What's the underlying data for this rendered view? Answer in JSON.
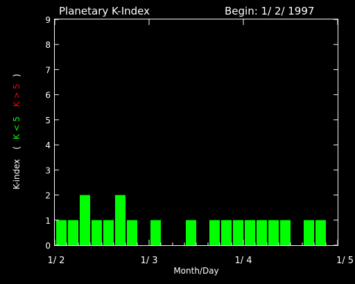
{
  "header": {
    "title": "Planetary K-Index",
    "begin": "Begin: 1/ 2/ 1997"
  },
  "chart_data": {
    "type": "bar",
    "title": "Planetary K-Index",
    "xlabel": "Month/Day",
    "ylabel": {
      "main": "K-index",
      "paren_open": "(",
      "green_part": "K < 5",
      "red_part": "K > 5",
      "paren_close": ")"
    },
    "ylim": [
      0,
      9
    ],
    "yticks": [
      "0",
      "1",
      "2",
      "3",
      "4",
      "5",
      "6",
      "7",
      "8",
      "9"
    ],
    "xlim_days": [
      0,
      3
    ],
    "xtick_labels": [
      "1/ 2",
      "1/ 3",
      "1/ 4",
      "1/ 5"
    ],
    "interval_hours": 3,
    "values": [
      1,
      1,
      2,
      1,
      1,
      2,
      1,
      0,
      1,
      0,
      0,
      1,
      0,
      1,
      1,
      1,
      1,
      1,
      1,
      1,
      0,
      1,
      1,
      0
    ],
    "colors": {
      "low": "#00ff00",
      "high": "#ff0000",
      "axis": "#ffffff",
      "background": "#000000"
    }
  }
}
